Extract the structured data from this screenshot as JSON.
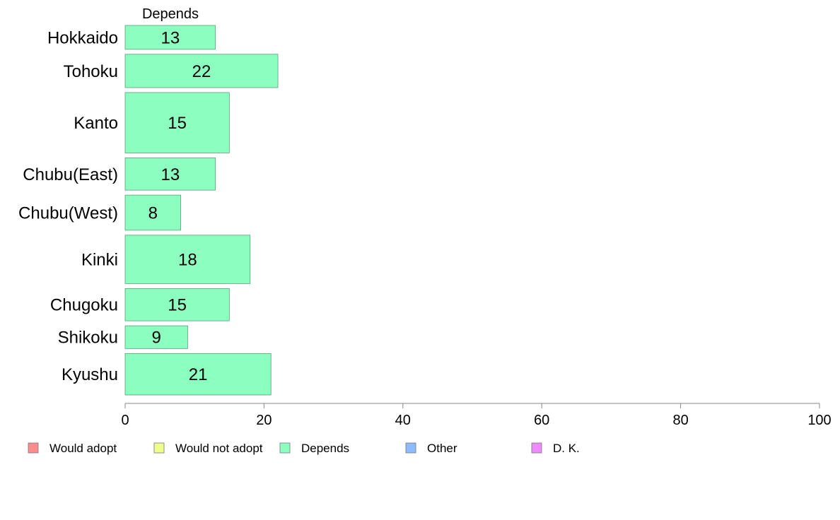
{
  "chart_data": {
    "type": "bar",
    "orientation": "horizontal",
    "stacked": true,
    "categories": [
      "Hokkaido",
      "Tohoku",
      "Kanto",
      "Chubu(East)",
      "Chubu(West)",
      "Kinki",
      "Chugoku",
      "Shikoku",
      "Kyushu"
    ],
    "relative_bar_thickness": [
      0.68,
      0.95,
      1.72,
      0.92,
      1.0,
      1.38,
      0.92,
      0.65,
      1.18
    ],
    "series": [
      {
        "name": "Depends",
        "color": "#8cffc0",
        "values": [
          13,
          22,
          15,
          13,
          8,
          18,
          15,
          9,
          21
        ]
      }
    ],
    "series_header": "Depends",
    "xlim": [
      0,
      100
    ],
    "xticks": [
      0,
      20,
      40,
      60,
      80,
      100
    ],
    "xlabel": "",
    "ylabel": "",
    "grid": false,
    "legend_position": "bottom",
    "legend": [
      {
        "label": "Would adopt",
        "color": "#ff8c8c"
      },
      {
        "label": "Would not adopt",
        "color": "#eeff8c"
      },
      {
        "label": "Depends",
        "color": "#8cffc0"
      },
      {
        "label": "Other",
        "color": "#8cbcff"
      },
      {
        "label": "D. K.",
        "color": "#ee8cff"
      }
    ]
  }
}
